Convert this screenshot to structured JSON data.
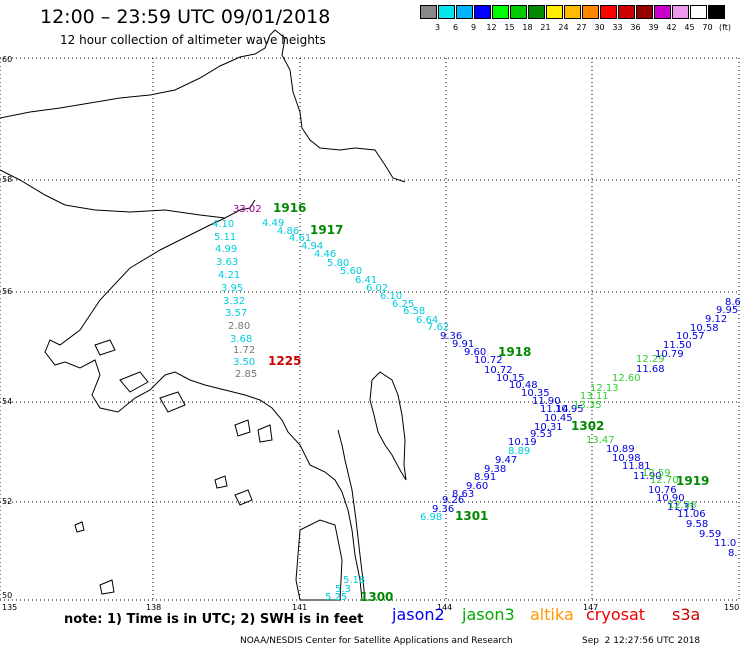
{
  "header": {
    "title": "12:00 – 23:59 UTC 09/01/2018",
    "subtitle": "12 hour collection of altimeter wave heights"
  },
  "color_scale": {
    "unit": "(ft)",
    "bins": [
      {
        "label": "3",
        "color": "#888888"
      },
      {
        "label": "6",
        "color": "#00e5ee"
      },
      {
        "label": "9",
        "color": "#00b4ff"
      },
      {
        "label": "12",
        "color": "#0000ff"
      },
      {
        "label": "15",
        "color": "#00ff00"
      },
      {
        "label": "18",
        "color": "#00cc00"
      },
      {
        "label": "21",
        "color": "#008800"
      },
      {
        "label": "24",
        "color": "#ffee00"
      },
      {
        "label": "27",
        "color": "#ffbb00"
      },
      {
        "label": "30",
        "color": "#ff8800"
      },
      {
        "label": "33",
        "color": "#ff0000"
      },
      {
        "label": "36",
        "color": "#cc0000"
      },
      {
        "label": "39",
        "color": "#990000"
      },
      {
        "label": "42",
        "color": "#cc00cc"
      },
      {
        "label": "45",
        "color": "#ee99ee"
      },
      {
        "label": "70",
        "color": "#ffffff"
      },
      {
        "label": "",
        "color": "#000000"
      }
    ]
  },
  "axes": {
    "lat_labels": [
      "60",
      "58",
      "56",
      "54",
      "52",
      "50"
    ],
    "lon_labels": [
      "135",
      "138",
      "141",
      "144",
      "147",
      "150"
    ]
  },
  "tracks": [
    {
      "satellite": "jason3",
      "time_label": "1916",
      "time_color": "#008800",
      "values": [
        {
          "v": "33.02",
          "c": "#990099"
        },
        {
          "v": "4.10",
          "c": "#00ccdd"
        },
        {
          "v": "5.11",
          "c": "#00ccdd"
        },
        {
          "v": "4.99",
          "c": "#00ccdd"
        },
        {
          "v": "3.63",
          "c": "#00ccdd"
        },
        {
          "v": "4.21",
          "c": "#00ccdd"
        },
        {
          "v": "3.95",
          "c": "#00ccdd"
        },
        {
          "v": "3.32",
          "c": "#00ccdd"
        },
        {
          "v": "3.57",
          "c": "#00ccdd"
        },
        {
          "v": "2.80",
          "c": "#777777"
        },
        {
          "v": "3.68",
          "c": "#00ccdd"
        },
        {
          "v": "1.72",
          "c": "#777777"
        },
        {
          "v": "3.50",
          "c": "#00ccdd"
        },
        {
          "v": "2.85",
          "c": "#777777"
        }
      ]
    },
    {
      "satellite": "jason2",
      "time_label": "1917",
      "time_color": "#008800",
      "values": [
        {
          "v": "4.49",
          "c": "#00ccdd"
        },
        {
          "v": "4.86",
          "c": "#00ccdd"
        },
        {
          "v": "4.61",
          "c": "#00ccdd"
        },
        {
          "v": "4.94",
          "c": "#00ccdd"
        },
        {
          "v": "4.46",
          "c": "#00ccdd"
        },
        {
          "v": "5.80",
          "c": "#00ccdd"
        },
        {
          "v": "5.60",
          "c": "#00ccdd"
        },
        {
          "v": "6.41",
          "c": "#00ccdd"
        },
        {
          "v": "6.02",
          "c": "#00ccdd"
        },
        {
          "v": "6.10",
          "c": "#00ccdd"
        },
        {
          "v": "6.25",
          "c": "#00ccdd"
        },
        {
          "v": "6.58",
          "c": "#00ccdd"
        },
        {
          "v": "6.64",
          "c": "#00ccdd"
        },
        {
          "v": "7.62",
          "c": "#00ccdd"
        },
        {
          "v": "9.36",
          "c": "#0000dd"
        },
        {
          "v": "9.91",
          "c": "#0000dd"
        }
      ]
    },
    {
      "satellite": "jason2",
      "time_label": "1918",
      "time_color": "#008800",
      "values": [
        {
          "v": "9.60",
          "c": "#0000dd"
        },
        {
          "v": "10.72",
          "c": "#0000dd"
        },
        {
          "v": "10.72",
          "c": "#0000dd"
        },
        {
          "v": "10.15",
          "c": "#0000dd"
        },
        {
          "v": "10.48",
          "c": "#0000dd"
        },
        {
          "v": "10.35",
          "c": "#0000dd"
        },
        {
          "v": "11.90",
          "c": "#0000dd"
        },
        {
          "v": "11.14",
          "c": "#0000dd"
        },
        {
          "v": "10.95",
          "c": "#0000dd"
        },
        {
          "v": "10.45",
          "c": "#0000dd"
        },
        {
          "v": "10.31",
          "c": "#0000dd"
        }
      ]
    },
    {
      "satellite": "jason2",
      "time_label": "1919",
      "time_color": "#008800",
      "values": [
        {
          "v": "10.89",
          "c": "#0000dd"
        },
        {
          "v": "10.98",
          "c": "#0000dd"
        },
        {
          "v": "11.81",
          "c": "#0000dd"
        },
        {
          "v": "11.90",
          "c": "#0000dd"
        },
        {
          "v": "10.76",
          "c": "#0000dd"
        },
        {
          "v": "10.90",
          "c": "#0000dd"
        },
        {
          "v": "11.31",
          "c": "#0000dd"
        },
        {
          "v": "11.06",
          "c": "#0000dd"
        },
        {
          "v": "9.58",
          "c": "#0000dd"
        },
        {
          "v": "9.59",
          "c": "#0000dd"
        },
        {
          "v": "11.0",
          "c": "#0000dd"
        },
        {
          "v": "8.",
          "c": "#0000dd"
        }
      ]
    },
    {
      "satellite": "jason3",
      "time_label": "1302",
      "time_color": "#008800",
      "values": [
        {
          "v": "12.29",
          "c": "#33cc33"
        },
        {
          "v": "12.60",
          "c": "#33cc33"
        },
        {
          "v": "12.13",
          "c": "#33cc33"
        },
        {
          "v": "13.11",
          "c": "#33cc33"
        },
        {
          "v": "13.35",
          "c": "#33cc33"
        },
        {
          "v": "13.47",
          "c": "#33cc33"
        },
        {
          "v": "12.59",
          "c": "#33cc33"
        },
        {
          "v": "12.70",
          "c": "#33cc33"
        },
        {
          "v": "12.98",
          "c": "#33cc33"
        }
      ]
    },
    {
      "satellite": "jason2",
      "time_label": "1301",
      "time_color": "#008800",
      "values": [
        {
          "v": "8.63",
          "c": "#0000dd"
        },
        {
          "v": "9.95",
          "c": "#0000dd"
        },
        {
          "v": "9.12",
          "c": "#0000dd"
        },
        {
          "v": "10.58",
          "c": "#0000dd"
        },
        {
          "v": "10.57",
          "c": "#0000dd"
        },
        {
          "v": "11.50",
          "c": "#0000dd"
        },
        {
          "v": "10.79",
          "c": "#0000dd"
        },
        {
          "v": "11.68",
          "c": "#0000dd"
        },
        {
          "v": "9.53",
          "c": "#0000dd"
        },
        {
          "v": "10.19",
          "c": "#0000dd"
        },
        {
          "v": "8.89",
          "c": "#00ccdd"
        },
        {
          "v": "9.47",
          "c": "#0000dd"
        },
        {
          "v": "9.38",
          "c": "#0000dd"
        },
        {
          "v": "8.91",
          "c": "#0000dd"
        },
        {
          "v": "9.60",
          "c": "#0000dd"
        },
        {
          "v": "8.63",
          "c": "#0000dd"
        },
        {
          "v": "9.26",
          "c": "#0000dd"
        },
        {
          "v": "9.36",
          "c": "#0000dd"
        },
        {
          "v": "6.98",
          "c": "#00ccdd"
        }
      ]
    },
    {
      "satellite": "cryosat",
      "time_label": "1225",
      "time_color": "#cc0000",
      "values": []
    },
    {
      "satellite": "jason3",
      "time_label": "1300",
      "time_color": "#008800",
      "values": [
        {
          "v": "5.18",
          "c": "#00ccdd"
        },
        {
          "v": "5.3",
          "c": "#00ccdd"
        },
        {
          "v": "5.25",
          "c": "#00ccdd"
        }
      ]
    }
  ],
  "footer": {
    "note": "note: 1) Time is in UTC; 2) SWH is in feet",
    "satellites": [
      {
        "name": "jason2",
        "color": "#0000ee"
      },
      {
        "name": "jason3",
        "color": "#00aa00"
      },
      {
        "name": "altika",
        "color": "#ff9900"
      },
      {
        "name": "cryosat",
        "color": "#ee0000"
      },
      {
        "name": "s3a",
        "color": "#cc0000"
      }
    ],
    "credit": "NOAA/NESDIS Center for Satellite Applications and Research",
    "timestamp": "Sep  2 12:27:56 UTC 2018"
  }
}
